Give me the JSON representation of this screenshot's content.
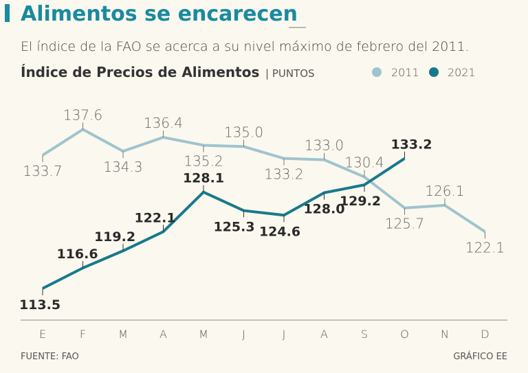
{
  "chart_data": {
    "type": "line",
    "title": "Alimentos se encarecen",
    "subtitle": "El índice de la FAO se acerca a su nivel máximo de febrero del 2011.",
    "chart_title": "Índice de Precios de Alimentos",
    "unit_label": "| PUNTOS",
    "categories": [
      "E",
      "F",
      "M",
      "A",
      "M",
      "J",
      "J",
      "A",
      "S",
      "O",
      "N",
      "D"
    ],
    "series": [
      {
        "name": "2011",
        "color": "#9fc4cd",
        "values": [
          133.7,
          137.6,
          134.3,
          136.4,
          135.2,
          135.0,
          133.2,
          133.0,
          130.4,
          125.7,
          126.1,
          122.1
        ],
        "value_labels": [
          "133.7",
          "137.6",
          "134.3",
          "136.4",
          "135.2",
          "135.0",
          "133.2",
          "133.0",
          "130.4",
          "125.7",
          "126.1",
          "122.1"
        ]
      },
      {
        "name": "2021",
        "color": "#177a8b",
        "values": [
          113.5,
          116.6,
          119.2,
          122.1,
          128.1,
          125.3,
          124.6,
          128.0,
          129.2,
          133.2,
          null,
          null
        ],
        "value_labels": [
          "113.5",
          "116.6",
          "119.2",
          "122.1",
          "128.1",
          "125.3",
          "124.6",
          "128.0",
          "129.2",
          "133.2",
          null,
          null
        ]
      }
    ],
    "ylim": [
      108.7,
      141.6
    ],
    "source": "FUENTE: FAO",
    "credit": "GRÁFICO EE"
  }
}
